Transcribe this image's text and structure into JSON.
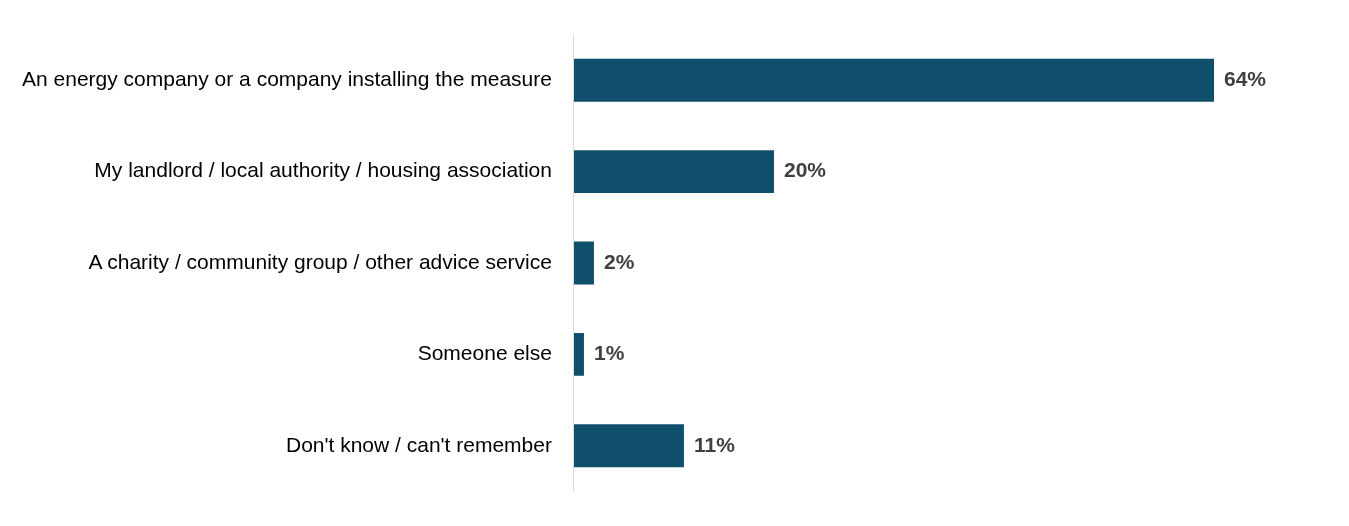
{
  "chart_data": {
    "type": "bar",
    "orientation": "horizontal",
    "categories": [
      "An energy company or a company installing the measure",
      "My landlord / local authority / housing association",
      "A charity / community group / other advice service",
      "Someone else",
      "Don't know / can't remember"
    ],
    "values": [
      64,
      20,
      2,
      1,
      11
    ],
    "value_labels": [
      "64%",
      "20%",
      "2%",
      "1%",
      "11%"
    ],
    "color": "#0f4f6b",
    "tick_labels": "y"
  }
}
